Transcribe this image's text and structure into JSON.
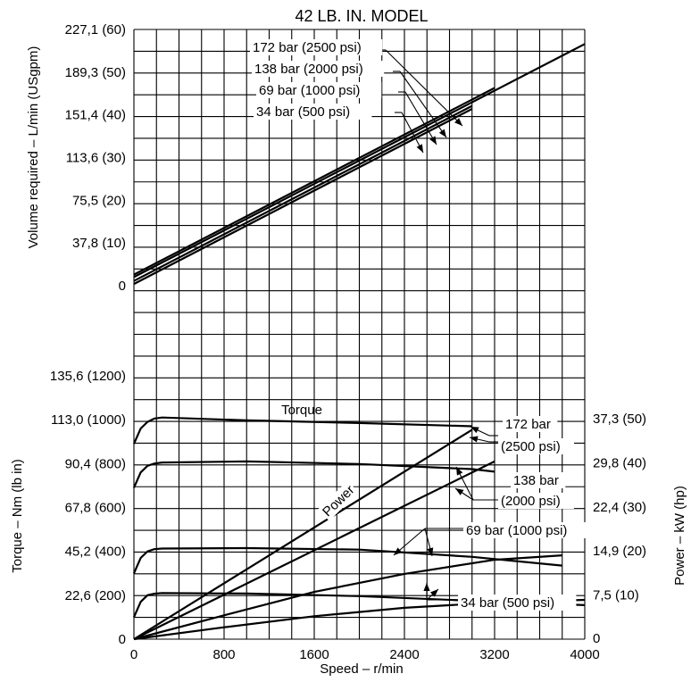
{
  "chart_data": [
    {
      "type": "line",
      "title": "42 LB. IN. MODEL",
      "ylabel": "Volume required – L/min (USgpm)",
      "yticks": [
        "0",
        "37,8 (10)",
        "75,5 (20)",
        "113,6 (30)",
        "151,4 (40)",
        "189,3 (50)",
        "227,1 (60)"
      ],
      "ylim_usgpm": [
        0,
        60
      ],
      "grid": true,
      "x_range_rpm": [
        0,
        4000
      ],
      "series": [
        {
          "name": "172 bar (2500 psi)",
          "x": [
            0,
            3200
          ],
          "y": [
            2.6,
            46.3
          ]
        },
        {
          "name": "138 bar (2000 psi)",
          "x": [
            0,
            4000
          ],
          "y": [
            2.0,
            56.6
          ]
        },
        {
          "name": "69 bar (1000 psi)",
          "x": [
            0,
            3000
          ],
          "y": [
            1.1,
            42.1
          ]
        },
        {
          "name": "34 bar (500 psi)",
          "x": [
            0,
            3000
          ],
          "y": [
            0.4,
            41.4
          ]
        }
      ]
    },
    {
      "type": "line",
      "xlabel": "Speed – r/min",
      "xticks": [
        "0",
        "800",
        "1600",
        "2400",
        "3200",
        "4000"
      ],
      "xlim": [
        0,
        4000
      ],
      "ylabel": "Torque – Nm (lb in)",
      "yticks": [
        "0",
        "22,6 (200)",
        "45,2 (400)",
        "67,8 (600)",
        "90,4 (800)",
        "113,0 (1000)",
        "135,6 (1200)"
      ],
      "ylim_lbin": [
        0,
        1200
      ],
      "y2label": "Power – kW (hp)",
      "y2ticks": [
        "0",
        "7,5 (10)",
        "14,9 (20)",
        "22,4 (30)",
        "29,8 (40)",
        "37,3 (50)"
      ],
      "y2lim_hp": [
        0,
        50
      ],
      "grid": true,
      "annotations": [
        "Torque",
        "Power"
      ],
      "series": [
        {
          "name": "172 bar (2500 psi)",
          "kind": "torque",
          "x": [
            0,
            60,
            120,
            180,
            250,
            1000,
            2000,
            3000
          ],
          "y": [
            890,
            960,
            990,
            1005,
            1010,
            997,
            985,
            970
          ]
        },
        {
          "name": "138 bar (2000 psi)",
          "kind": "torque",
          "x": [
            0,
            60,
            120,
            180,
            250,
            1000,
            2000,
            3000,
            3200
          ],
          "y": [
            690,
            760,
            790,
            800,
            805,
            810,
            798,
            775,
            763
          ]
        },
        {
          "name": "69 bar (1000 psi)",
          "kind": "torque",
          "x": [
            0,
            60,
            120,
            180,
            250,
            1000,
            2000,
            3000,
            3800
          ],
          "y": [
            300,
            370,
            400,
            410,
            413,
            415,
            408,
            375,
            335
          ]
        },
        {
          "name": "34 bar (500 psi)",
          "kind": "torque",
          "x": [
            0,
            60,
            120,
            180,
            250,
            1000,
            2000,
            3000,
            4000
          ],
          "y": [
            100,
            170,
            200,
            207,
            210,
            208,
            196,
            175,
            155
          ]
        },
        {
          "name": "172 bar (2500 psi)",
          "kind": "power",
          "x": [
            0,
            3000
          ],
          "y": [
            0,
            47.5
          ]
        },
        {
          "name": "138 bar (2000 psi)",
          "kind": "power",
          "x": [
            0,
            3200
          ],
          "y": [
            0,
            40.3
          ]
        },
        {
          "name": "69 bar (1000 psi)",
          "kind": "power",
          "x": [
            0,
            800,
            1600,
            2400,
            3200,
            3800
          ],
          "y": [
            0,
            5.4,
            10.7,
            14.8,
            18.0,
            19.0
          ]
        },
        {
          "name": "34 bar (500 psi)",
          "kind": "power",
          "x": [
            0,
            800,
            1600,
            2400,
            3200,
            4000
          ],
          "y": [
            0,
            2.7,
            5.2,
            7.1,
            8.3,
            8.9
          ]
        }
      ]
    }
  ]
}
